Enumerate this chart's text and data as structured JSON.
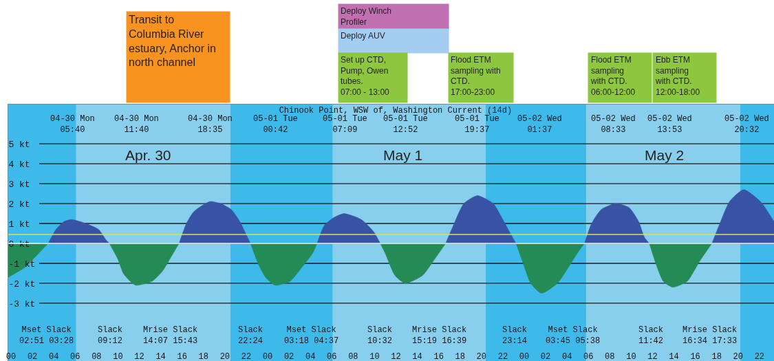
{
  "chart_data": {
    "type": "area",
    "title": "Chinook Point, WSW of, Washington Current (14d)",
    "series": [
      {
        "color": "#248a56",
        "x": [
          -0.26,
          1.3,
          2.4,
          3.47,
          6,
          9.2,
          10.0,
          10.5,
          11.15,
          11.67,
          13.2,
          14.15,
          15.05,
          15.72,
          19,
          22.4,
          23.1,
          23.8,
          24.7,
          26.1,
          27.2,
          28.2,
          28.62,
          31,
          34.53,
          35.0,
          35.9,
          36.87,
          38.5,
          39.6,
          40.65,
          44,
          47.23,
          47.9,
          48.6,
          49.62,
          51.1,
          52.25,
          52.95,
          53.63,
          56,
          59.7,
          60.3,
          61.0,
          61.88,
          63.25,
          64.4,
          65.55
        ],
        "values": [
          -1.7,
          -1.2,
          -0.6,
          0,
          null,
          0,
          -0.8,
          -1.5,
          -1.9,
          -2.1,
          -1.9,
          -1.4,
          -0.6,
          0,
          null,
          0,
          -1.0,
          -1.7,
          -2.1,
          -1.9,
          -1.2,
          -0.5,
          0,
          null,
          0,
          -0.5,
          -1.6,
          -2.0,
          -1.6,
          -0.8,
          0,
          null,
          0,
          -1.0,
          -2.0,
          -2.5,
          -2.0,
          -1.1,
          -0.5,
          0,
          null,
          0,
          -1.0,
          -1.9,
          -2.2,
          -1.9,
          -0.9,
          0
        ]
      },
      {
        "color": "#3953a4",
        "x": [
          3.47,
          4.2,
          4.95,
          5.67,
          7.0,
          8.2,
          8.85,
          9.2,
          12,
          15.72,
          16.4,
          17.1,
          18.58,
          19.6,
          20.6,
          21.4,
          21.95,
          22.4,
          25,
          28.62,
          29.3,
          30.2,
          31.15,
          32.75,
          33.9,
          34.53,
          38,
          40.65,
          41.45,
          42.35,
          43.62,
          45.1,
          46.0,
          46.7,
          47.23,
          50,
          53.63,
          54.3,
          55.2,
          56.55,
          57.8,
          58.7,
          59.25,
          59.7,
          62,
          65.55,
          66.3,
          67.2,
          68.53,
          70.1,
          71.36
        ],
        "values": [
          0,
          0.7,
          1.1,
          1.2,
          1.0,
          0.7,
          0.2,
          0,
          null,
          0,
          1.0,
          1.6,
          2.1,
          2.0,
          1.7,
          1.1,
          0.5,
          0,
          null,
          0,
          0.9,
          1.3,
          1.5,
          1.2,
          0.6,
          0,
          null,
          0,
          1.0,
          2.0,
          2.4,
          2.0,
          1.2,
          0.5,
          0,
          null,
          0,
          1.0,
          1.7,
          2.0,
          1.8,
          1.1,
          0.3,
          0,
          null,
          0,
          1.0,
          2.1,
          2.7,
          2.1,
          1.1
        ]
      }
    ],
    "xlim": [
      -0.26,
      71.36
    ],
    "xticks": [
      {
        "value": 0,
        "label": "00"
      },
      {
        "value": 2,
        "label": "02"
      },
      {
        "value": 4,
        "label": "04"
      },
      {
        "value": 6,
        "label": "06"
      },
      {
        "value": 8,
        "label": "08"
      },
      {
        "value": 10,
        "label": "10"
      },
      {
        "value": 12,
        "label": "12"
      },
      {
        "value": 14,
        "label": "14"
      },
      {
        "value": 16,
        "label": "16"
      },
      {
        "value": 18,
        "label": "18"
      },
      {
        "value": 20,
        "label": "20"
      },
      {
        "value": 22,
        "label": "22"
      },
      {
        "value": 24,
        "label": "00"
      },
      {
        "value": 26,
        "label": "02"
      },
      {
        "value": 28,
        "label": "04"
      },
      {
        "value": 30,
        "label": "06"
      },
      {
        "value": 32,
        "label": "08"
      },
      {
        "value": 34,
        "label": "10"
      },
      {
        "value": 36,
        "label": "12"
      },
      {
        "value": 38,
        "label": "14"
      },
      {
        "value": 40,
        "label": "16"
      },
      {
        "value": 42,
        "label": "18"
      },
      {
        "value": 44,
        "label": "20"
      },
      {
        "value": 46,
        "label": "22"
      },
      {
        "value": 48,
        "label": "00"
      },
      {
        "value": 50,
        "label": "02"
      },
      {
        "value": 52,
        "label": "04"
      },
      {
        "value": 54,
        "label": "06"
      },
      {
        "value": 56,
        "label": "08"
      },
      {
        "value": 58,
        "label": "10"
      },
      {
        "value": 60,
        "label": "12"
      },
      {
        "value": 62,
        "label": "14"
      },
      {
        "value": 64,
        "label": "16"
      },
      {
        "value": 66,
        "label": "18"
      },
      {
        "value": 68,
        "label": "20"
      },
      {
        "value": 70,
        "label": "22"
      }
    ],
    "ylim": [
      -5.9,
      6.97
    ],
    "yticks": [
      {
        "value": -3,
        "label": "-3 kt"
      },
      {
        "value": -2,
        "label": "-2 kt"
      },
      {
        "value": -1,
        "label": "-1 kt"
      },
      {
        "value": 0,
        "label": "0 kt"
      },
      {
        "value": 1,
        "label": "1 kt"
      },
      {
        "value": 2,
        "label": "2 kt"
      },
      {
        "value": 3,
        "label": "3 kt"
      },
      {
        "value": 4,
        "label": "4 kt"
      },
      {
        "value": 5,
        "label": "5 kt"
      }
    ],
    "grid": "y",
    "ref_lines": [
      {
        "axis": "y",
        "value": 0,
        "label": null,
        "color": "#ffffff"
      },
      {
        "axis": "y",
        "value": 0.45,
        "label": null,
        "color": "#e2e04a"
      }
    ],
    "bands": [
      {
        "axis": "x",
        "from": -0.26,
        "to": 6.1,
        "label": null,
        "color": "#3dbaea"
      },
      {
        "axis": "x",
        "from": 6.1,
        "to": 20.5,
        "label": null,
        "color": "#87cfed"
      },
      {
        "axis": "x",
        "from": 20.5,
        "to": 30.1,
        "label": null,
        "color": "#3dbaea"
      },
      {
        "axis": "x",
        "from": 30.1,
        "to": 44.4,
        "label": null,
        "color": "#87cfed"
      },
      {
        "axis": "x",
        "from": 44.4,
        "to": 53.8,
        "label": null,
        "color": "#3dbaea"
      },
      {
        "axis": "x",
        "from": 53.8,
        "to": 68.2,
        "label": null,
        "color": "#87cfed"
      },
      {
        "axis": "x",
        "from": 68.2,
        "to": 71.36,
        "label": null,
        "color": "#3dbaea"
      }
    ],
    "annotations": [
      "Transit to\nColumbia River\nestuary, Anchor in\nnorth channel",
      "Deploy Winch\nProfiler",
      "Deploy AUV",
      "Set up CTD,\nPump, Owen\ntubes.\n07:00 - 13:00",
      "Flood ETM\nsampling with\nCTD.\n17:00-23:00",
      "Flood ETM\nsampling\nwith CTD.\n06:00-12:00",
      "Ebb ETM\nsampling\nwith CTD.\n12:00-18:00",
      "04-30 Mon\n05:40",
      "04-30 Mon\n11:40",
      "04-30 Mon\n18:35",
      "05-01 Tue\n00:42",
      "05-01 Tue\n07:09",
      "05-01 Tue\n12:52",
      "05-01 Tue\n19:37",
      "05-02 Wed\n01:37",
      "05-02 Wed\n08:33",
      "05-02 Wed\n13:53",
      "05-02 Wed\n20:32",
      "Apr. 30",
      "May 1",
      "May 2",
      "Mset Slack\n02:51 03:28",
      "Slack\n09:12",
      "Mrise Slack\n14:07 15:43",
      "Slack\n22:24",
      "Mset Slack\n03:18 04:37",
      "Slack\n10:32",
      "Mrise Slack\n15:19 16:39",
      "Slack\n23:14",
      "Mset Slack\n03:45 05:38",
      "Slack\n11:42",
      "Mrise Slack\n16:34 17:33"
    ]
  }
}
